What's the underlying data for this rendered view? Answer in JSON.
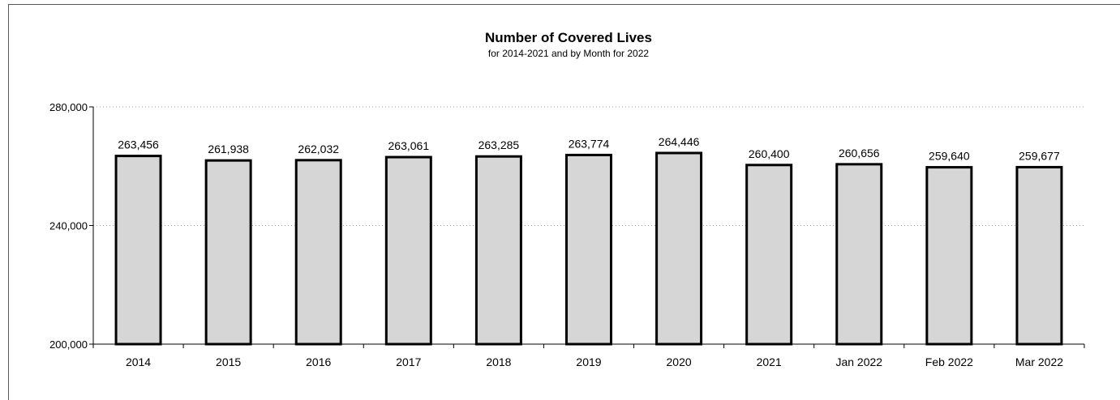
{
  "chart_data": {
    "type": "bar",
    "title": "Number of Covered Lives",
    "subtitle": "for 2014-2021  and by Month for 2022",
    "categories": [
      "2014",
      "2015",
      "2016",
      "2017",
      "2018",
      "2019",
      "2020",
      "2021",
      "Jan 2022",
      "Feb 2022",
      "Mar 2022"
    ],
    "values": [
      263456,
      261938,
      262032,
      263061,
      263285,
      263774,
      264446,
      260400,
      260656,
      259640,
      259677
    ],
    "value_labels": [
      "263,456",
      "261,938",
      "262,032",
      "263,061",
      "263,285",
      "263,774",
      "264,446",
      "260,400",
      "260,656",
      "259,640",
      "259,677"
    ],
    "ylim": [
      200000,
      280000
    ],
    "yticks": [
      200000,
      240000,
      280000
    ],
    "ytick_labels": [
      "200,000",
      "240,000",
      "280,000"
    ],
    "grid": true,
    "bar_color": "#d6d6d6",
    "bar_edge_color": "#000000"
  }
}
